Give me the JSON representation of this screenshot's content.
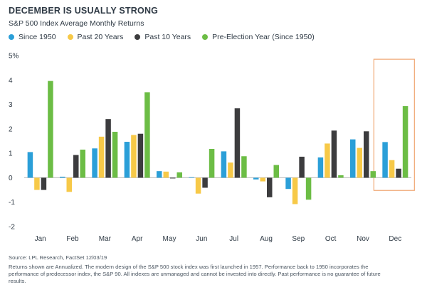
{
  "title": "DECEMBER IS USUALLY STRONG",
  "subtitle": "S&P 500 Index Average Monthly Returns",
  "colors": {
    "since_1950": "#2b9fd8",
    "past_20": "#f7c948",
    "past_10": "#3c3c3e",
    "pre_election": "#6cbd45",
    "highlight": "#f0a875",
    "axis_text": "#2f3a45",
    "zero_line": "#bdbdbd"
  },
  "chart_data": {
    "type": "bar",
    "title": "DECEMBER IS USUALLY STRONG",
    "subtitle": "S&P 500 Index Average Monthly Returns",
    "xlabel": "",
    "ylabel": "",
    "ylim": [
      -2,
      5
    ],
    "yticks": [
      "-2",
      "-1",
      "0",
      "1",
      "2",
      "3",
      "4",
      "5%"
    ],
    "yticks_values": [
      -2,
      -1,
      0,
      1,
      2,
      3,
      4,
      5
    ],
    "grid": false,
    "legend_position": "top-left",
    "highlighted_category": "Dec",
    "categories": [
      "Jan",
      "Feb",
      "Mar",
      "Apr",
      "May",
      "Jun",
      "Jul",
      "Aug",
      "Sep",
      "Oct",
      "Nov",
      "Dec"
    ],
    "series": [
      {
        "name": "Since 1950",
        "key": "since_1950",
        "values": [
          1.05,
          0.04,
          1.2,
          1.47,
          0.27,
          0.02,
          1.08,
          -0.07,
          -0.46,
          0.83,
          1.57,
          1.46
        ]
      },
      {
        "name": "Past 20 Years",
        "key": "past_20",
        "values": [
          -0.5,
          -0.58,
          1.68,
          1.75,
          0.25,
          -0.65,
          0.62,
          -0.15,
          -1.08,
          1.4,
          1.22,
          0.72
        ]
      },
      {
        "name": "Past 10 Years",
        "key": "past_10",
        "values": [
          -0.5,
          0.93,
          2.4,
          1.8,
          -0.03,
          -0.41,
          2.84,
          -0.8,
          0.86,
          1.93,
          1.9,
          0.37
        ]
      },
      {
        "name": "Pre-Election Year (Since 1950)",
        "key": "pre_election",
        "values": [
          3.96,
          1.15,
          1.88,
          3.5,
          0.22,
          1.18,
          0.88,
          0.52,
          -0.9,
          0.1,
          0.27,
          2.93
        ]
      }
    ]
  },
  "footer": {
    "source": "Source: LPL Research, FactSet  12/03/19",
    "note": "Returns shown are Annualized. The modern design of the S&P 500 stock index was first launched in 1957. Performance back to 1950 incorporates the performance of predecessor index, the S&P 90. All indexes are unmanaged and cannot be invested into directly. Past performance is no guarantee of future results."
  }
}
